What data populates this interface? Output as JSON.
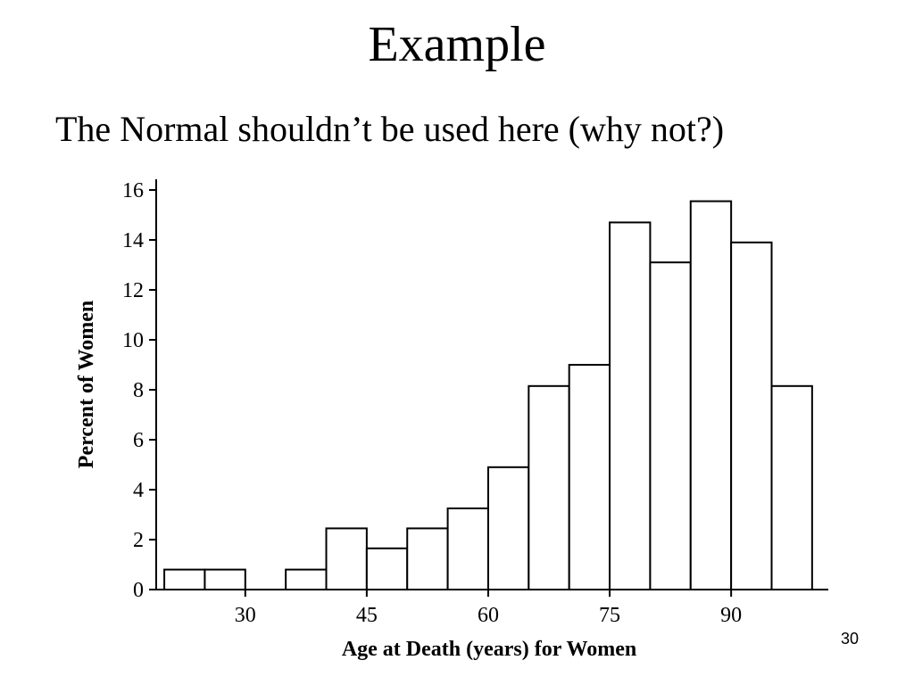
{
  "slide": {
    "title": "Example",
    "subtitle": "The Normal shouldn’t be used here (why not?)",
    "page_number": "30"
  },
  "chart_data": {
    "type": "bar",
    "xlabel": "Age at Death (years) for Women",
    "ylabel": "Percent of Women",
    "bin_width": 5,
    "bins": [
      {
        "start": 20,
        "value": 0.8
      },
      {
        "start": 25,
        "value": 0.8
      },
      {
        "start": 30,
        "value": 0
      },
      {
        "start": 35,
        "value": 0.8
      },
      {
        "start": 40,
        "value": 2.45
      },
      {
        "start": 45,
        "value": 1.65
      },
      {
        "start": 50,
        "value": 2.45
      },
      {
        "start": 55,
        "value": 3.25
      },
      {
        "start": 60,
        "value": 4.9
      },
      {
        "start": 65,
        "value": 8.15
      },
      {
        "start": 70,
        "value": 9.0
      },
      {
        "start": 75,
        "value": 14.7
      },
      {
        "start": 80,
        "value": 13.1
      },
      {
        "start": 85,
        "value": 15.55
      },
      {
        "start": 90,
        "value": 13.9
      },
      {
        "start": 95,
        "value": 8.15
      }
    ],
    "xlim": [
      19,
      102
    ],
    "ylim": [
      0,
      16
    ],
    "xticks": [
      30,
      45,
      60,
      75,
      90
    ],
    "yticks": [
      0,
      2,
      4,
      6,
      8,
      10,
      12,
      14,
      16
    ],
    "grid": false
  }
}
